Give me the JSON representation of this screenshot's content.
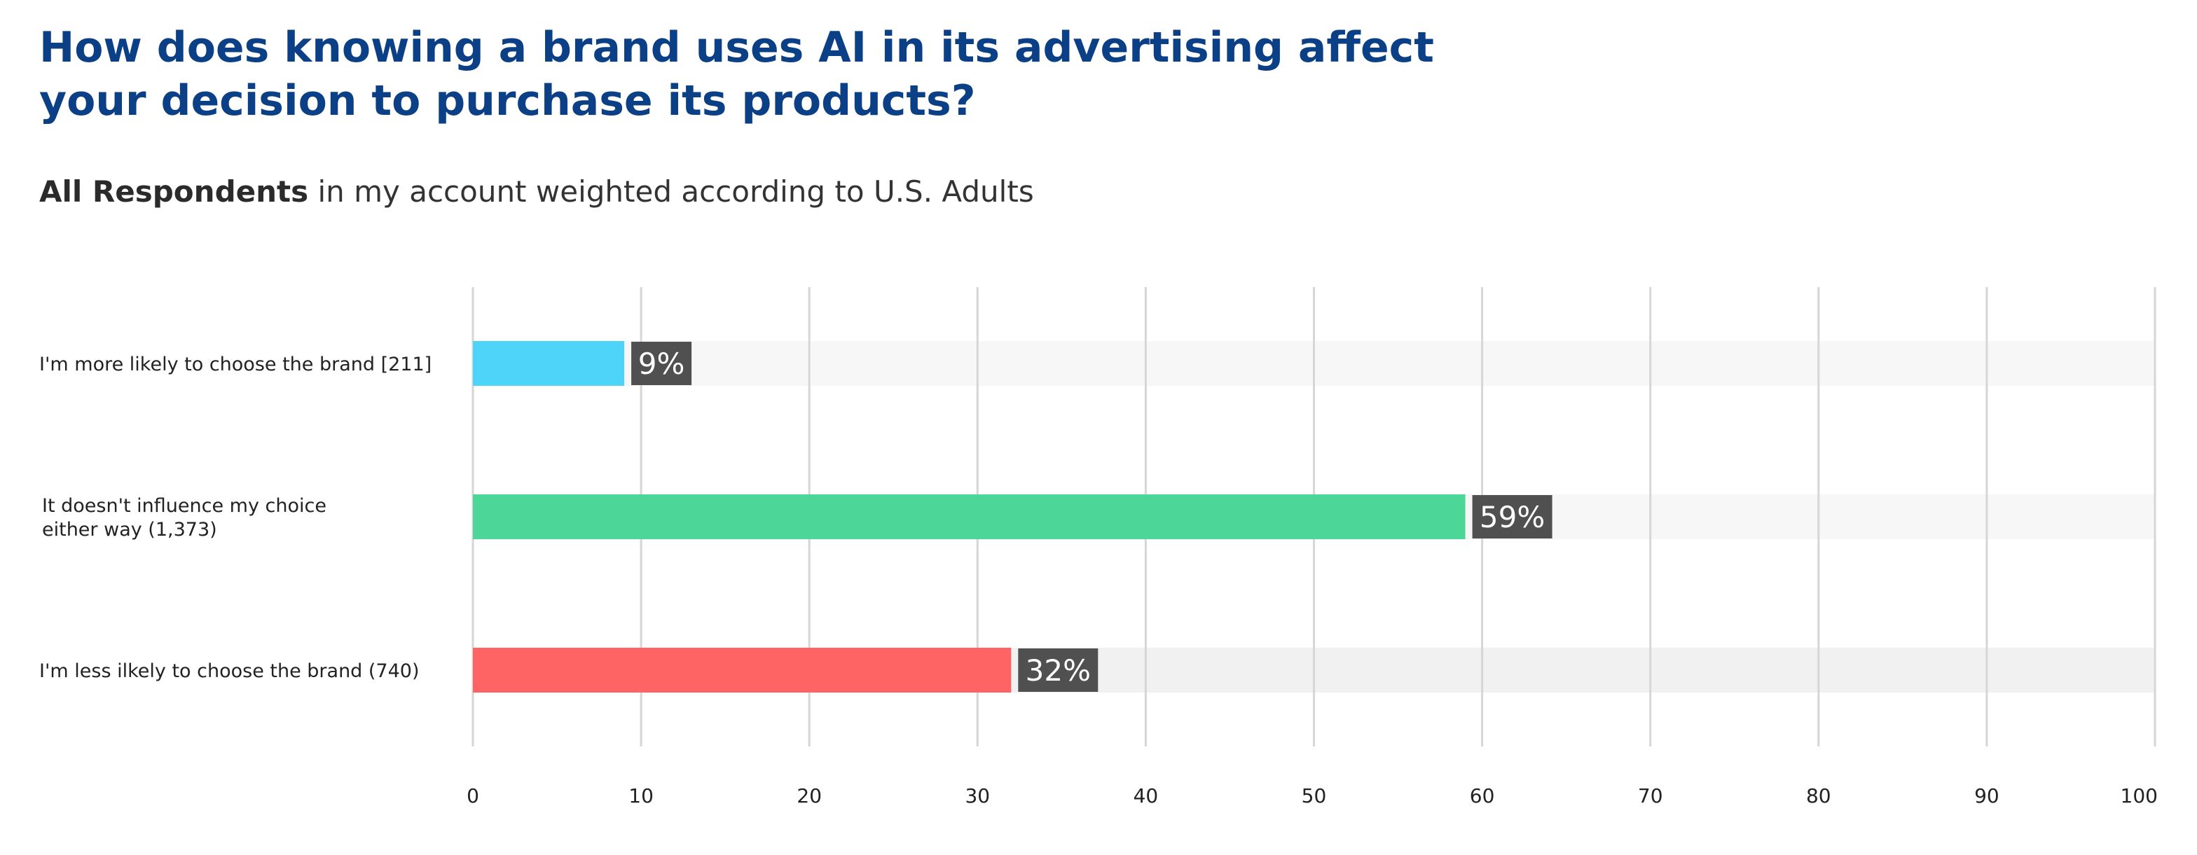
{
  "title_lines": [
    "How does knowing a brand uses AI in its advertising affect",
    "your decision to purchase its products?"
  ],
  "subtitle": {
    "bold": "All Respondents",
    "rest": " in my account weighted according to U.S. Adults"
  },
  "colors": {
    "title": "#0b3f86",
    "track": "#f7f7f7",
    "track_last": "#f1f1f1",
    "gridline": "#d6d6d6",
    "value_label_bg": "#505050"
  },
  "chart_data": {
    "type": "bar",
    "orientation": "horizontal",
    "categories": [
      "I'm more likely to choose the brand [211]",
      "It doesn't influence my choice either way (1,373)",
      "I'm less ilkely to choose the brand (740)"
    ],
    "category_label_lines": [
      [
        "I'm more likely to choose the brand [211]"
      ],
      [
        "It doesn't influence my choice",
        "either way (1,373)"
      ],
      [
        "I'm less ilkely to choose the brand (740)"
      ]
    ],
    "values": [
      9,
      59,
      32
    ],
    "value_labels": [
      "9%",
      "59%",
      "32%"
    ],
    "bar_colors": [
      "#4dd4f8",
      "#4cd697",
      "#ff6464"
    ],
    "xlim": [
      0,
      100
    ],
    "xticks": [
      0,
      10,
      20,
      30,
      40,
      50,
      60,
      70,
      80,
      90,
      100
    ],
    "grid": true,
    "legend": "none",
    "xlabel": "",
    "ylabel": ""
  }
}
